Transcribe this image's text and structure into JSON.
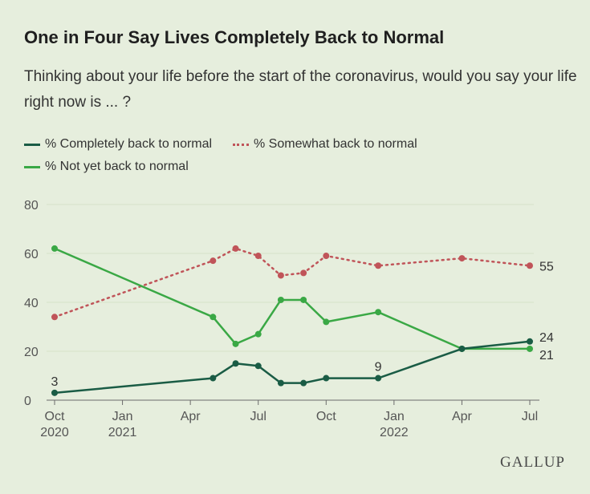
{
  "title": "One in Four Say Lives Completely Back to Normal",
  "subtitle": "Thinking about your life before the start of the coronavirus, would you say your life right now is ... ?",
  "legend": {
    "completely": "% Completely back to normal",
    "somewhat": "% Somewhat back to normal",
    "not_yet": "% Not yet back to normal"
  },
  "colors": {
    "completely": "#1a5c45",
    "somewhat": "#c05459",
    "not_yet": "#3aa845",
    "grid": "#d7e3c9",
    "axis": "#6b6b6b"
  },
  "logo": "GALLUP",
  "chart_data": {
    "type": "line",
    "title": "One in Four Say Lives Completely Back to Normal",
    "x_ticks": [
      {
        "value": 0,
        "line1": "Oct",
        "line2": "2020"
      },
      {
        "value": 3,
        "line1": "Jan",
        "line2": "2021"
      },
      {
        "value": 6,
        "line1": "Apr",
        "line2": ""
      },
      {
        "value": 9,
        "line1": "Jul",
        "line2": ""
      },
      {
        "value": 12,
        "line1": "Oct",
        "line2": ""
      },
      {
        "value": 15,
        "line1": "Jan",
        "line2": "2022"
      },
      {
        "value": 18,
        "line1": "Apr",
        "line2": ""
      },
      {
        "value": 21,
        "line1": "Jul",
        "line2": ""
      }
    ],
    "xlim": [
      0,
      21
    ],
    "ylim": [
      0,
      80
    ],
    "y_ticks": [
      "0",
      "20",
      "40",
      "60",
      "80"
    ],
    "series": [
      {
        "key": "completely",
        "name": "% Completely back to normal",
        "style": "solid",
        "x": [
          0,
          7,
          8,
          9,
          10,
          11,
          12,
          14.3,
          18,
          21
        ],
        "values": [
          3,
          9,
          15,
          14,
          7,
          7,
          9,
          9,
          21,
          24
        ]
      },
      {
        "key": "somewhat",
        "name": "% Somewhat back to normal",
        "style": "dotted",
        "x": [
          0,
          7,
          8,
          9,
          10,
          11,
          12,
          14.3,
          18,
          21
        ],
        "values": [
          34,
          57,
          62,
          59,
          51,
          52,
          59,
          55,
          58,
          55
        ]
      },
      {
        "key": "not_yet",
        "name": "% Not yet back to normal",
        "style": "solid",
        "x": [
          0,
          7,
          8,
          9,
          10,
          11,
          12,
          14.3,
          18,
          21
        ],
        "values": [
          62,
          34,
          23,
          27,
          41,
          41,
          32,
          36,
          21,
          21
        ]
      }
    ],
    "annotations": [
      {
        "series": "completely",
        "index": 0,
        "text": "3",
        "pos": "above"
      },
      {
        "series": "completely",
        "index": 7,
        "text": "9",
        "pos": "above"
      },
      {
        "series": "somewhat",
        "index": 9,
        "text": "55",
        "pos": "right"
      },
      {
        "series": "completely",
        "index": 9,
        "text": "24",
        "pos": "right-up"
      },
      {
        "series": "not_yet",
        "index": 9,
        "text": "21",
        "pos": "right-down"
      }
    ]
  }
}
